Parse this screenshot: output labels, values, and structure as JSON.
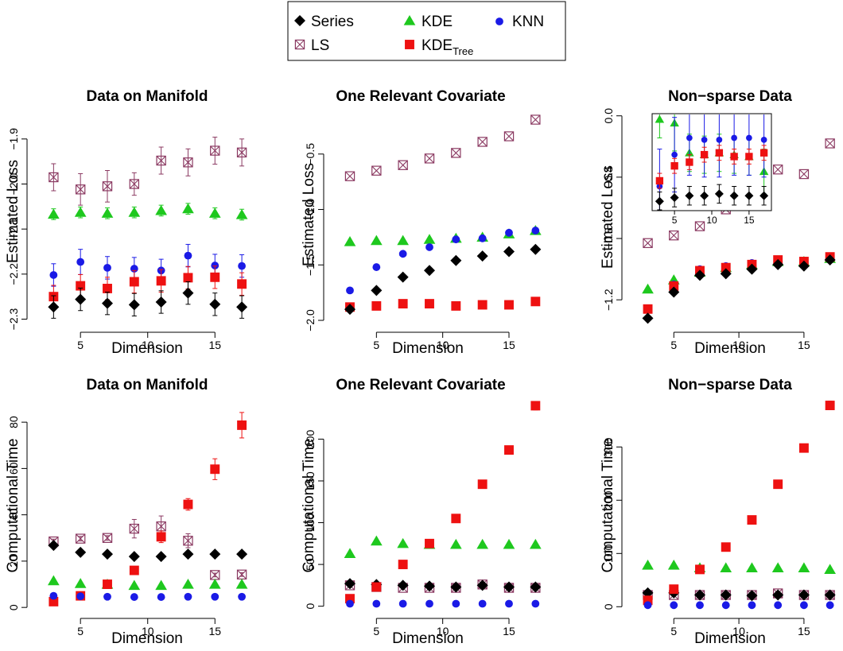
{
  "legend": {
    "items": [
      {
        "key": "series",
        "label": "Series",
        "marker": "diamond",
        "color": "#000000"
      },
      {
        "key": "kde",
        "label": "KDE",
        "marker": "triangle",
        "color": "#1ec81e"
      },
      {
        "key": "knn",
        "label": "KNN",
        "marker": "circle",
        "color": "#1a1ae6"
      },
      {
        "key": "ls",
        "label": "LS",
        "marker": "boxx",
        "color": "#8b3a62"
      },
      {
        "key": "kdetree",
        "label": "KDE",
        "label_sub": "Tree",
        "marker": "square",
        "color": "#ee1111"
      }
    ]
  },
  "chart_data": [
    {
      "type": "scatter",
      "title": "Data on Manifold",
      "xlabel": "Dimension",
      "ylabel": "Estimated Loss",
      "xlim": [
        1.5,
        18
      ],
      "ylim": [
        -2.315,
        -1.835
      ],
      "xticks": [
        "5",
        "10",
        "15"
      ],
      "yticks": [
        "-2.3",
        "-2.2",
        "-2.1",
        "-2.0",
        "-1.9"
      ],
      "x": [
        3,
        5,
        7,
        9,
        11,
        13,
        15,
        17
      ],
      "series": [
        {
          "name": "LS",
          "values": [
            -1.985,
            -2.012,
            -2.005,
            -2.0,
            -1.948,
            -1.952,
            -1.926,
            -1.93
          ],
          "err": [
            0.03,
            0.035,
            0.035,
            0.025,
            0.03,
            0.03,
            0.03,
            0.03
          ]
        },
        {
          "name": "KDE",
          "values": [
            -2.067,
            -2.063,
            -2.065,
            -2.063,
            -2.059,
            -2.055,
            -2.065,
            -2.068
          ],
          "err": [
            0.012,
            0.012,
            0.012,
            0.012,
            0.012,
            0.012,
            0.012,
            0.012
          ]
        },
        {
          "name": "KNN",
          "values": [
            -2.202,
            -2.173,
            -2.186,
            -2.188,
            -2.192,
            -2.159,
            -2.181,
            -2.182
          ],
          "err": [
            0.025,
            0.028,
            0.025,
            0.025,
            0.025,
            0.025,
            0.025,
            0.025
          ]
        },
        {
          "name": "KDE_Tree",
          "values": [
            -2.25,
            -2.226,
            -2.232,
            -2.217,
            -2.215,
            -2.208,
            -2.207,
            -2.222
          ],
          "err": [
            0.025,
            0.025,
            0.025,
            0.025,
            0.025,
            0.025,
            0.025,
            0.025
          ]
        },
        {
          "name": "Series",
          "values": [
            -2.273,
            -2.256,
            -2.265,
            -2.268,
            -2.262,
            -2.242,
            -2.267,
            -2.273
          ],
          "err": [
            0.025,
            0.025,
            0.025,
            0.025,
            0.025,
            0.025,
            0.025,
            0.025
          ]
        }
      ]
    },
    {
      "type": "scatter",
      "title": "One Relevant Covariate",
      "xlabel": "Dimension",
      "ylabel": "Estimated Loss",
      "xlim": [
        1.5,
        18
      ],
      "ylim": [
        -2.05,
        -0.1
      ],
      "xticks": [
        "5",
        "10",
        "15"
      ],
      "yticks": [
        "-2.0",
        "-1.5",
        "-1.0",
        "-0.5"
      ],
      "x": [
        3,
        5,
        7,
        9,
        11,
        13,
        15,
        17
      ],
      "series": [
        {
          "name": "LS",
          "values": [
            -0.7,
            -0.65,
            -0.6,
            -0.54,
            -0.49,
            -0.39,
            -0.34,
            -0.19
          ],
          "err": [
            0,
            0,
            0,
            0,
            0,
            0,
            0,
            0
          ]
        },
        {
          "name": "KDE",
          "values": [
            -1.29,
            -1.28,
            -1.28,
            -1.27,
            -1.26,
            -1.25,
            -1.22,
            -1.19
          ],
          "err": [
            0,
            0,
            0,
            0,
            0,
            0,
            0,
            0
          ]
        },
        {
          "name": "KNN",
          "values": [
            -1.73,
            -1.52,
            -1.4,
            -1.34,
            -1.27,
            -1.26,
            -1.21,
            -1.19
          ],
          "err": [
            0,
            0,
            0,
            0,
            0,
            0,
            0,
            0
          ]
        },
        {
          "name": "KDE_Tree",
          "values": [
            -1.88,
            -1.87,
            -1.85,
            -1.85,
            -1.87,
            -1.86,
            -1.86,
            -1.83
          ],
          "err": [
            0,
            0,
            0,
            0,
            0,
            0,
            0,
            0
          ]
        },
        {
          "name": "Series",
          "values": [
            -1.9,
            -1.73,
            -1.61,
            -1.55,
            -1.46,
            -1.42,
            -1.38,
            -1.36
          ],
          "err": [
            0,
            0,
            0,
            0,
            0,
            0,
            0,
            0
          ]
        }
      ]
    },
    {
      "type": "scatter",
      "title": "Non−sparse Data",
      "xlabel": "Dimension",
      "ylabel": "Estimated Loss",
      "xlim": [
        1.5,
        18
      ],
      "ylim": [
        -1.37,
        0.04
      ],
      "xticks": [
        "5",
        "10",
        "15"
      ],
      "yticks": [
        "-1.2",
        "-0.8",
        "-0.4",
        "0.0"
      ],
      "x": [
        3,
        5,
        7,
        9,
        11,
        13,
        15,
        17
      ],
      "series": [
        {
          "name": "LS",
          "values": [
            -0.83,
            -0.78,
            -0.72,
            -0.61,
            -0.56,
            -0.35,
            -0.38,
            -0.18
          ],
          "err": [
            0,
            0,
            0,
            0,
            0,
            0,
            0,
            0
          ]
        },
        {
          "name": "KDE",
          "values": [
            -1.13,
            -1.07,
            -1.02,
            -0.99,
            -0.97,
            -0.95,
            -0.95,
            -0.93
          ],
          "err": [
            0,
            0,
            0,
            0,
            0,
            0,
            0,
            0
          ]
        },
        {
          "name": "KNN",
          "values": [
            -1.26,
            -1.1,
            -1.0,
            -0.98,
            -0.96,
            -0.94,
            -0.95,
            -0.92
          ],
          "err": [
            0,
            0,
            0,
            0,
            0,
            0,
            0,
            0
          ]
        },
        {
          "name": "KDE_Tree",
          "values": [
            -1.26,
            -1.11,
            -1.01,
            -0.99,
            -0.97,
            -0.94,
            -0.95,
            -0.92
          ],
          "err": [
            0,
            0,
            0,
            0,
            0,
            0,
            0,
            0
          ]
        },
        {
          "name": "Series",
          "values": [
            -1.32,
            -1.15,
            -1.04,
            -1.03,
            -1.0,
            -0.97,
            -0.98,
            -0.94
          ],
          "err": [
            0,
            0,
            0,
            0,
            0,
            0,
            0,
            0
          ]
        }
      ],
      "inset": {
        "xlim": [
          2,
          18
        ],
        "ylim": [
          -1.37,
          -0.85
        ],
        "xticks": [
          "5",
          "10",
          "15"
        ],
        "x": [
          3,
          5,
          7,
          9,
          11,
          13,
          15,
          17
        ],
        "series": [
          {
            "name": "KDE",
            "values": [
              -0.88,
              -0.9,
              -1.06,
              -1.07,
              -1.06,
              -1.07,
              -1.08,
              -1.16
            ],
            "err": [
              0.1,
              0.15,
              0.1,
              0.1,
              0.1,
              0.1,
              0.1,
              0.12
            ]
          },
          {
            "name": "KNN",
            "values": [
              -1.24,
              -1.07,
              -0.98,
              -0.99,
              -0.99,
              -0.98,
              -0.98,
              -0.99
            ],
            "err": [
              0.2,
              0.2,
              0.2,
              0.2,
              0.2,
              0.2,
              0.2,
              0.2
            ]
          },
          {
            "name": "KDE_Tree",
            "values": [
              -1.21,
              -1.13,
              -1.11,
              -1.07,
              -1.06,
              -1.08,
              -1.08,
              -1.06
            ],
            "err": [
              0.04,
              0.04,
              0.04,
              0.04,
              0.04,
              0.04,
              0.04,
              0.04
            ]
          },
          {
            "name": "Series",
            "values": [
              -1.32,
              -1.3,
              -1.29,
              -1.29,
              -1.28,
              -1.29,
              -1.29,
              -1.29
            ],
            "err": [
              0.05,
              0.05,
              0.05,
              0.05,
              0.05,
              0.05,
              0.05,
              0.05
            ]
          }
        ]
      }
    },
    {
      "type": "scatter",
      "title": "Data on Manifold",
      "xlabel": "Dimension",
      "ylabel": "Computational Time",
      "xlim": [
        1.5,
        18
      ],
      "ylim": [
        -2,
        90
      ],
      "xticks": [
        "5",
        "10",
        "15"
      ],
      "yticks": [
        "0",
        "20",
        "40",
        "60",
        "80"
      ],
      "x": [
        3,
        5,
        7,
        9,
        11,
        13,
        15,
        17
      ],
      "series": [
        {
          "name": "LS",
          "values": [
            28.5,
            29.7,
            30.0,
            34.0,
            35.0,
            28.8,
            14.0,
            14.2
          ],
          "err": [
            1.0,
            1.0,
            1.0,
            4.0,
            4.5,
            3.0,
            0.8,
            0.8
          ]
        },
        {
          "name": "Series",
          "values": [
            26.8,
            23.8,
            23.0,
            22.0,
            22.0,
            23.0,
            23.0,
            23.0
          ],
          "err": [
            0,
            0,
            0,
            0,
            0,
            0,
            0,
            0
          ]
        },
        {
          "name": "KDE",
          "values": [
            11.5,
            10.3,
            10.0,
            9.5,
            9.5,
            10.0,
            10.0,
            10.0
          ],
          "err": [
            0,
            0,
            0,
            0,
            0,
            0,
            0,
            0
          ]
        },
        {
          "name": "KDE_Tree",
          "values": [
            2.5,
            5.0,
            10.0,
            16.0,
            30.5,
            44.5,
            59.7,
            78.7
          ],
          "err": [
            0.5,
            0.5,
            1.0,
            0.8,
            2.5,
            2.5,
            4.5,
            5.5
          ]
        },
        {
          "name": "KNN",
          "values": [
            5.0,
            4.8,
            4.6,
            4.5,
            4.5,
            4.6,
            4.6,
            4.6
          ],
          "err": [
            0,
            0,
            0,
            0,
            0,
            0,
            0,
            0
          ]
        }
      ]
    },
    {
      "type": "scatter",
      "title": "One Relevant Covariate",
      "xlabel": "Dimension",
      "ylabel": "Computational Time",
      "xlim": [
        1.5,
        18
      ],
      "ylim": [
        -7,
        248
      ],
      "xticks": [
        "5",
        "10",
        "15"
      ],
      "yticks": [
        "0",
        "50",
        "100",
        "150",
        "200"
      ],
      "x": [
        3,
        5,
        7,
        9,
        11,
        13,
        15,
        17
      ],
      "series": [
        {
          "name": "KDE",
          "values": [
            63,
            78,
            75,
            74,
            74,
            74,
            74,
            74
          ],
          "err": [
            0,
            0,
            0,
            0,
            0,
            0,
            0,
            0
          ]
        },
        {
          "name": "LS",
          "values": [
            25,
            23,
            22,
            22,
            22,
            26,
            22,
            22
          ],
          "err": [
            0,
            0,
            0,
            0,
            0,
            0,
            0,
            0
          ]
        },
        {
          "name": "Series",
          "values": [
            27,
            26,
            25,
            24,
            23,
            25,
            23,
            23
          ],
          "err": [
            0,
            0,
            0,
            0,
            0,
            0,
            0,
            0
          ]
        },
        {
          "name": "KDE_Tree",
          "values": [
            9,
            23,
            50,
            75,
            105,
            146,
            187,
            240
          ],
          "err": [
            0,
            0,
            0,
            0,
            0,
            3,
            4,
            5
          ]
        },
        {
          "name": "KNN",
          "values": [
            3,
            3,
            3,
            3,
            3,
            3,
            3,
            3
          ],
          "err": [
            0,
            0,
            0,
            0,
            0,
            0,
            0,
            0
          ]
        }
      ]
    },
    {
      "type": "scatter",
      "title": "Non−sparse Data",
      "xlabel": "Dimension",
      "ylabel": "Computational Time",
      "xlim": [
        1.5,
        18
      ],
      "ylim": [
        -10,
        390
      ],
      "xticks": [
        "5",
        "10",
        "15"
      ],
      "yticks": [
        "0",
        "100",
        "200",
        "300"
      ],
      "x": [
        3,
        5,
        7,
        9,
        11,
        13,
        15,
        17
      ],
      "series": [
        {
          "name": "KDE",
          "values": [
            78,
            78,
            73,
            73,
            73,
            73,
            73,
            70
          ],
          "err": [
            0,
            0,
            0,
            0,
            0,
            0,
            0,
            0
          ]
        },
        {
          "name": "LS",
          "values": [
            22,
            22,
            22,
            22,
            22,
            25,
            22,
            22
          ],
          "err": [
            0,
            0,
            0,
            0,
            0,
            0,
            0,
            0
          ]
        },
        {
          "name": "Series",
          "values": [
            26,
            26,
            22,
            22,
            21,
            22,
            22,
            22
          ],
          "err": [
            0,
            0,
            0,
            0,
            0,
            0,
            0,
            0
          ]
        },
        {
          "name": "KDE_Tree",
          "values": [
            12,
            33,
            70,
            112,
            163,
            230,
            298,
            378
          ],
          "err": [
            0,
            0,
            0,
            0,
            0,
            3,
            4,
            8
          ]
        },
        {
          "name": "KNN",
          "values": [
            3,
            3,
            3,
            3,
            3,
            3,
            3,
            3
          ],
          "err": [
            0,
            0,
            0,
            0,
            0,
            0,
            0,
            0
          ]
        }
      ]
    }
  ]
}
